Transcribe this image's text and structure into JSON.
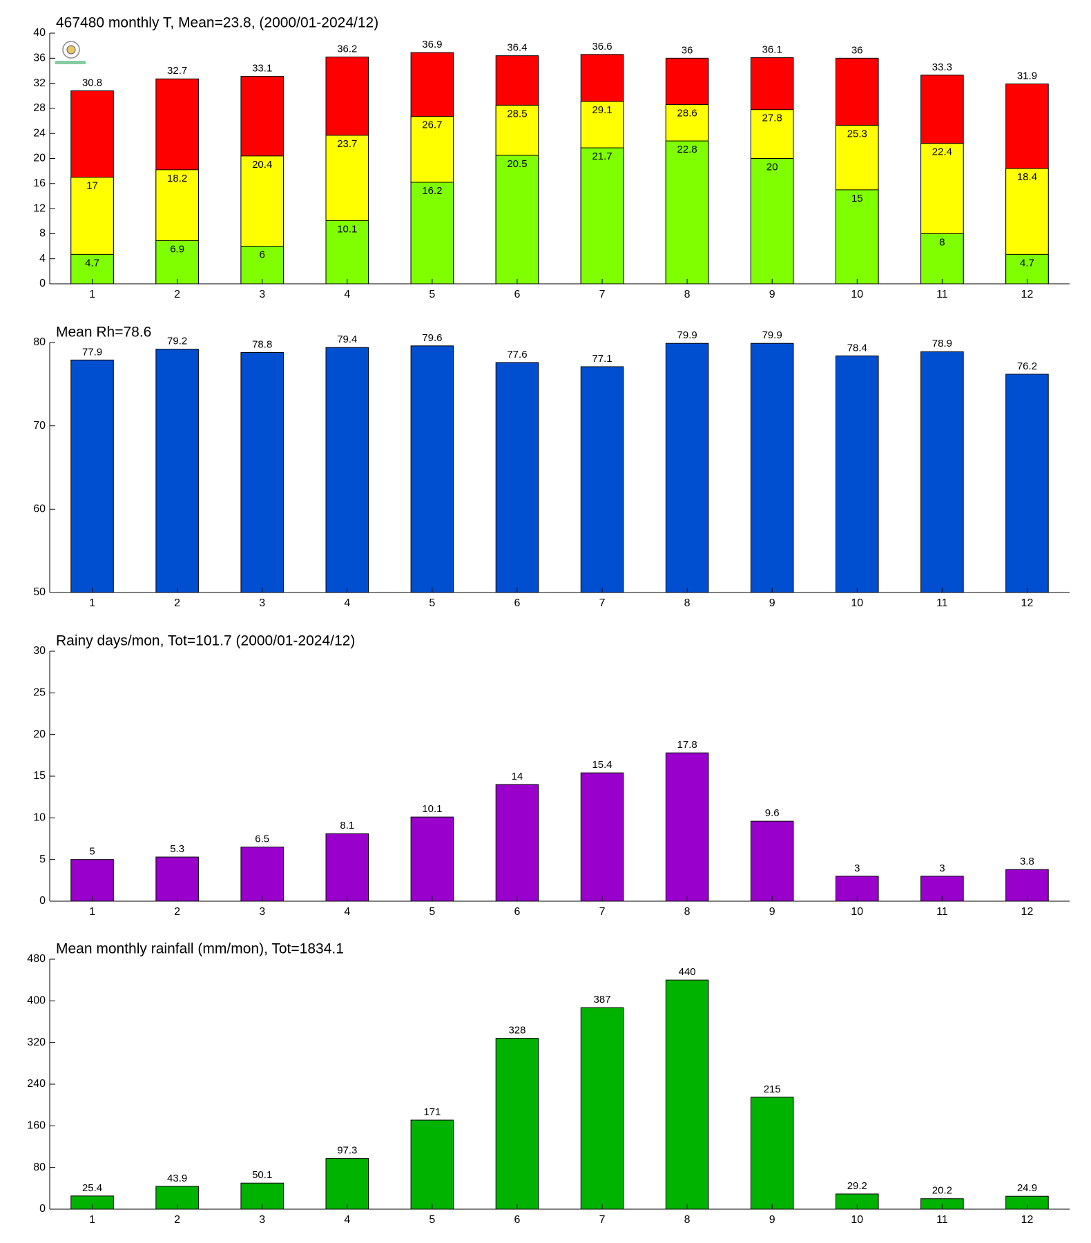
{
  "chart_data": [
    {
      "type": "bar",
      "title": "467480 monthly T, Mean=23.8, (2000/01-2024/12)",
      "categories": [
        "1",
        "2",
        "3",
        "4",
        "5",
        "6",
        "7",
        "8",
        "9",
        "10",
        "11",
        "12"
      ],
      "series": [
        {
          "color": "#ff0000",
          "label_position": "outside",
          "values": [
            30.8,
            32.7,
            33.1,
            36.2,
            36.9,
            36.4,
            36.6,
            36,
            36.1,
            36,
            33.3,
            31.9
          ]
        },
        {
          "color": "#ffff00",
          "label_position": "inside",
          "values": [
            17,
            18.2,
            20.4,
            23.7,
            26.7,
            28.5,
            29.1,
            28.6,
            27.8,
            25.3,
            22.4,
            18.4
          ]
        },
        {
          "color": "#80ff00",
          "label_position": "inside",
          "values": [
            4.7,
            6.9,
            6,
            10.1,
            16.2,
            20.5,
            21.7,
            22.8,
            20,
            15,
            8,
            4.7
          ]
        }
      ],
      "ylim": [
        0,
        40
      ],
      "yticks": [
        0,
        4,
        8,
        12,
        16,
        20,
        24,
        28,
        32,
        36,
        40
      ]
    },
    {
      "type": "bar",
      "title": "Mean Rh=78.6",
      "categories": [
        "1",
        "2",
        "3",
        "4",
        "5",
        "6",
        "7",
        "8",
        "9",
        "10",
        "11",
        "12"
      ],
      "series": [
        {
          "color": "#004fd0",
          "label_position": "outside",
          "values": [
            77.9,
            79.2,
            78.8,
            79.4,
            79.6,
            77.6,
            77.1,
            79.9,
            79.9,
            78.4,
            78.9,
            76.2
          ]
        }
      ],
      "ylim": [
        50,
        80
      ],
      "yticks": [
        50,
        60,
        70,
        80
      ]
    },
    {
      "type": "bar",
      "title": "Rainy days/mon, Tot=101.7 (2000/01-2024/12)",
      "categories": [
        "1",
        "2",
        "3",
        "4",
        "5",
        "6",
        "7",
        "8",
        "9",
        "10",
        "11",
        "12"
      ],
      "series": [
        {
          "color": "#9900cc",
          "label_position": "outside",
          "values": [
            5,
            5.3,
            6.5,
            8.1,
            10.1,
            14,
            15.4,
            17.8,
            9.6,
            3,
            3,
            3.8
          ]
        }
      ],
      "ylim": [
        0,
        30
      ],
      "yticks": [
        0,
        5,
        10,
        15,
        20,
        25,
        30
      ]
    },
    {
      "type": "bar",
      "title": "Mean monthly rainfall (mm/mon), Tot=1834.1",
      "categories": [
        "1",
        "2",
        "3",
        "4",
        "5",
        "6",
        "7",
        "8",
        "9",
        "10",
        "11",
        "12"
      ],
      "series": [
        {
          "color": "#00b300",
          "label_position": "outside",
          "values": [
            25.4,
            43.9,
            50.1,
            97.3,
            171,
            328,
            387,
            440,
            215,
            29.2,
            20.2,
            24.9
          ]
        }
      ],
      "ylim": [
        0,
        480
      ],
      "yticks": [
        0,
        80,
        160,
        240,
        320,
        400,
        480
      ]
    }
  ]
}
